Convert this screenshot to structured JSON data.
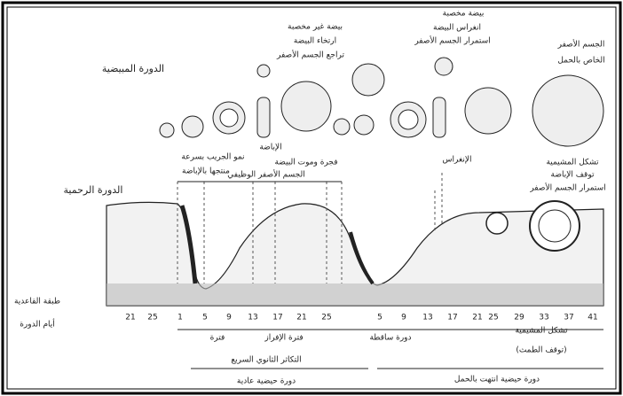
{
  "titles": {
    "ovarian_cycle": "الدورة المبيضية",
    "uterine_cycle": "الدورة الرحمية"
  },
  "ovary_labels": [
    "بيضة مخصبة",
    "انغراس البيضة",
    "استمرار الجسم الأصفر",
    "بيضة غير مخصبة",
    "ارتخاء البيضة",
    "تراجع الجسم الأصفر",
    "الجسم الأصفر",
    "الخاص بالحمل",
    "الإباضة"
  ],
  "uterine_labels": [
    "نمو الجريب بسرعة",
    "منتجها بالإباضة",
    "فجرة وموت البيضة",
    "الجسم الأصفر الوظيفي",
    "الإنغراس",
    "تشكل المشيمية",
    "توقف الإباضة",
    "استمرار الجسم الأصفر"
  ],
  "axis": {
    "basal_layer": "طبقة القاعدية",
    "cycle_days": "أيام الدورة",
    "days": [
      21,
      25,
      1,
      5,
      9,
      13,
      17,
      21,
      25,
      5,
      9,
      13,
      17,
      21,
      25,
      29,
      33,
      37,
      41
    ]
  },
  "phases": [
    "فترة",
    "فترة الإفراز",
    "دورة ساقطة",
    "تشكل المشيمية",
    "(توقف الطمث)",
    "التكاثر الثانوي السريع",
    "دورة حيضية عادية",
    "دورة حيضية انتهت بالحمل"
  ]
}
